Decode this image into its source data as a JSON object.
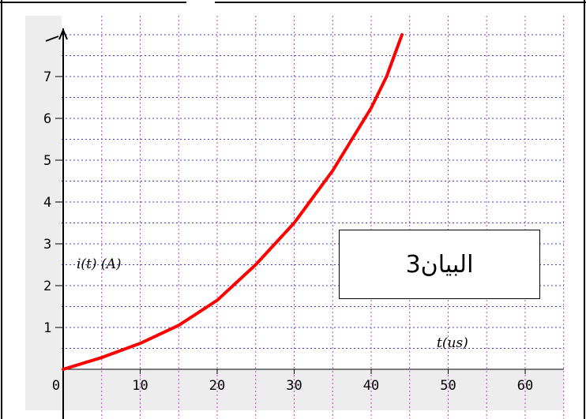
{
  "chart_data": {
    "type": "line",
    "title": "",
    "xlabel": "t(us)",
    "ylabel": "i(t)  (A)",
    "xlim": [
      0,
      65
    ],
    "ylim": [
      0,
      8
    ],
    "x_ticks": [
      "0",
      "10",
      "20",
      "30",
      "40",
      "50",
      "60"
    ],
    "y_ticks": [
      "1",
      "2",
      "3",
      "4",
      "5",
      "6",
      "7"
    ],
    "grid": true,
    "grid_color": "#c040c0",
    "series": [
      {
        "color": "#ff0000",
        "x": [
          0,
          5,
          10,
          15,
          20,
          25,
          30,
          35,
          40,
          42,
          44
        ],
        "y": [
          0,
          0.28,
          0.62,
          1.05,
          1.65,
          2.5,
          3.5,
          4.75,
          6.25,
          7.0,
          8.0
        ]
      }
    ],
    "annotation": "البيان3"
  }
}
